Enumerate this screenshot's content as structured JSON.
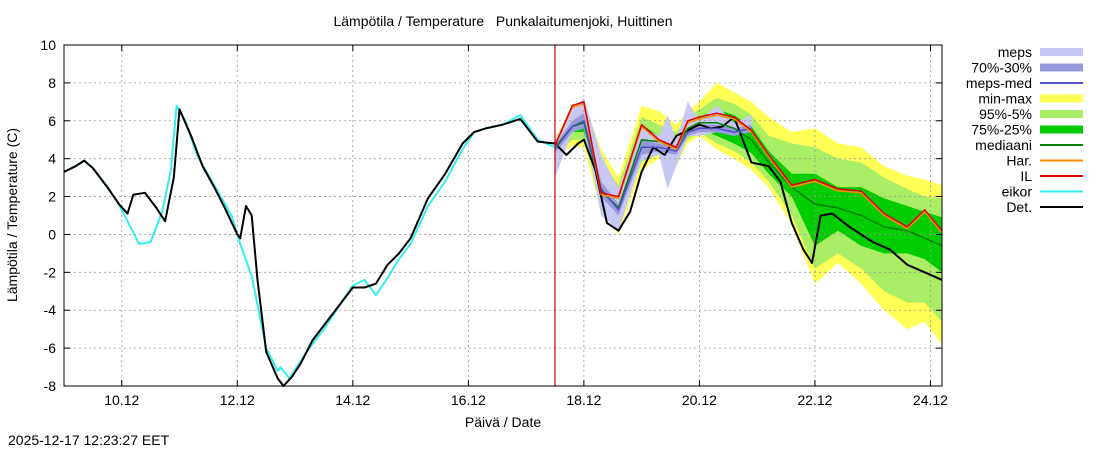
{
  "chart_data": {
    "type": "line",
    "title": "Lämpötila / Temperature   Punkalaitumenjoki, Huittinen",
    "xlabel": "Päivä / Date",
    "ylabel": "Lämpötila / Temperature (C)",
    "timestamp": "2025-12-17 12:23:27 EET",
    "xlim": [
      9.0,
      24.2
    ],
    "ylim": [
      -8,
      10
    ],
    "grid": true,
    "legend_position": "outside-right",
    "x_ticks": [
      {
        "x": 10,
        "label": "10.12"
      },
      {
        "x": 12,
        "label": "12.12"
      },
      {
        "x": 14,
        "label": "14.12"
      },
      {
        "x": 16,
        "label": "16.12"
      },
      {
        "x": 18,
        "label": "18.12"
      },
      {
        "x": 20,
        "label": "20.12"
      },
      {
        "x": 22,
        "label": "22.12"
      },
      {
        "x": 24,
        "label": "24.12"
      }
    ],
    "y_ticks": [
      {
        "y": 10,
        "label": "10"
      },
      {
        "y": 8,
        "label": "8"
      },
      {
        "y": 6,
        "label": "6"
      },
      {
        "y": 4,
        "label": "4"
      },
      {
        "y": 2,
        "label": "2"
      },
      {
        "y": 0,
        "label": "0"
      },
      {
        "y": -2,
        "label": "-2"
      },
      {
        "y": -4,
        "label": "-4"
      },
      {
        "y": -6,
        "label": "-6"
      },
      {
        "y": -8,
        "label": "-8"
      }
    ],
    "forecast_start_x": 17.5,
    "forecast_line_color": "#cc0000",
    "legend": [
      {
        "label": "meps",
        "kind": "band",
        "color": "#c8c8f5"
      },
      {
        "label": "70%-30%",
        "kind": "band",
        "color": "#9898dd"
      },
      {
        "label": "meps-med",
        "kind": "line",
        "color": "#5050c0"
      },
      {
        "label": "min-max",
        "kind": "band",
        "color": "#ffff55"
      },
      {
        "label": "95%-5%",
        "kind": "band",
        "color": "#aaee66"
      },
      {
        "label": "75%-25%",
        "kind": "band",
        "color": "#00cc00"
      },
      {
        "label": "mediaani",
        "kind": "line",
        "color": "#008000"
      },
      {
        "label": "Har.",
        "kind": "line",
        "color": "#ff8c00"
      },
      {
        "label": "IL",
        "kind": "line",
        "color": "#dd0000"
      },
      {
        "label": "eikor",
        "kind": "line",
        "color": "#33eeee"
      },
      {
        "label": "Det.",
        "kind": "line",
        "color": "#000000"
      }
    ],
    "bands": [
      {
        "name": "min-max",
        "color": "#ffff55",
        "x": [
          17.5,
          17.8,
          18.0,
          18.3,
          18.6,
          19.0,
          19.3,
          19.6,
          19.8,
          20.0,
          20.3,
          20.6,
          20.9,
          21.2,
          21.6,
          22.0,
          22.4,
          22.8,
          23.2,
          23.6,
          23.9,
          24.2
        ],
        "upper": [
          5.1,
          6.7,
          7.0,
          4.5,
          3.0,
          6.8,
          6.5,
          5.8,
          6.5,
          7.0,
          8.0,
          7.5,
          7.0,
          6.2,
          5.4,
          5.6,
          4.8,
          4.6,
          3.6,
          3.1,
          2.9,
          2.6
        ],
        "lower": [
          4.0,
          4.7,
          4.6,
          1.2,
          0.0,
          3.4,
          4.0,
          3.6,
          4.8,
          5.2,
          4.5,
          4.0,
          3.4,
          2.5,
          0.5,
          -2.6,
          -1.5,
          -2.6,
          -4.0,
          -5.0,
          -4.6,
          -5.8
        ]
      },
      {
        "name": "95%-5%",
        "color": "#aaee66",
        "x": [
          17.5,
          17.8,
          18.0,
          18.3,
          18.6,
          19.0,
          19.3,
          19.6,
          19.8,
          20.0,
          20.3,
          20.6,
          20.9,
          21.2,
          21.6,
          22.0,
          22.4,
          22.8,
          23.2,
          23.6,
          23.9,
          24.2
        ],
        "upper": [
          5.0,
          6.2,
          6.5,
          3.9,
          2.6,
          6.2,
          5.8,
          5.4,
          6.2,
          6.6,
          7.2,
          6.9,
          6.3,
          5.2,
          4.8,
          4.6,
          4.0,
          3.8,
          3.0,
          2.4,
          2.0,
          1.9
        ],
        "lower": [
          4.2,
          5.0,
          5.0,
          1.6,
          0.6,
          3.8,
          4.4,
          4.0,
          5.0,
          5.4,
          4.8,
          4.4,
          3.8,
          2.8,
          1.0,
          -1.8,
          -1.0,
          -1.8,
          -3.0,
          -3.6,
          -3.6,
          -4.6
        ]
      },
      {
        "name": "75%-25%",
        "color": "#00cc00",
        "x": [
          17.5,
          17.8,
          18.0,
          18.3,
          18.6,
          19.0,
          19.3,
          19.6,
          19.8,
          20.0,
          20.3,
          20.6,
          20.9,
          21.2,
          21.6,
          22.0,
          22.4,
          22.8,
          23.2,
          23.6,
          23.9,
          24.2
        ],
        "upper": [
          4.8,
          6.0,
          6.2,
          2.6,
          2.0,
          5.8,
          5.2,
          5.0,
          5.9,
          6.2,
          6.6,
          6.3,
          5.7,
          4.4,
          3.2,
          3.2,
          2.5,
          2.5,
          1.9,
          1.5,
          1.2,
          0.9
        ],
        "lower": [
          4.4,
          5.4,
          5.4,
          2.0,
          1.0,
          4.4,
          4.6,
          4.4,
          5.3,
          5.6,
          5.2,
          4.8,
          4.3,
          3.2,
          2.0,
          -0.6,
          0.2,
          -0.6,
          -1.0,
          -1.0,
          -1.3,
          -2.0
        ]
      },
      {
        "name": "meps",
        "color": "#c8c8f5",
        "x": [
          17.5,
          17.8,
          18.0,
          18.3,
          18.6,
          19.0,
          19.3,
          19.45,
          19.6,
          19.8,
          20.0,
          20.3,
          20.6,
          20.9
        ],
        "upper": [
          5.0,
          6.6,
          7.2,
          4.2,
          2.4,
          5.7,
          5.2,
          6.3,
          5.0,
          7.0,
          6.0,
          6.8,
          5.9,
          6.3
        ],
        "lower": [
          3.0,
          5.4,
          5.6,
          1.0,
          0.2,
          3.9,
          4.2,
          2.4,
          3.6,
          5.2,
          5.2,
          5.4,
          5.2,
          5.6
        ]
      },
      {
        "name": "70%-30%",
        "color": "#9898dd",
        "x": [
          17.5,
          17.8,
          18.0,
          18.3,
          18.6,
          19.0,
          19.3,
          19.6,
          19.8,
          20.0,
          20.3,
          20.6,
          20.9
        ],
        "upper": [
          4.7,
          6.0,
          6.4,
          2.8,
          1.6,
          5.0,
          4.8,
          4.6,
          5.6,
          5.8,
          5.8,
          5.6,
          5.8
        ],
        "lower": [
          4.3,
          5.4,
          5.6,
          2.0,
          1.0,
          4.2,
          4.4,
          4.2,
          5.2,
          5.4,
          5.4,
          5.2,
          5.4
        ]
      }
    ],
    "series": [
      {
        "name": "eikor",
        "color": "#33eeee",
        "width": 2,
        "x": [
          9.0,
          9.2,
          9.35,
          9.5,
          9.75,
          9.95,
          10.1,
          10.3,
          10.5,
          10.7,
          10.85,
          10.95,
          11.1,
          11.3,
          11.6,
          11.9,
          12.05,
          12.25,
          12.5,
          12.7,
          12.75,
          12.9,
          13.2,
          13.5,
          13.8,
          14.0,
          14.2,
          14.4,
          14.6,
          14.8,
          15.0,
          15.3,
          15.6,
          15.9,
          16.1,
          16.3,
          16.6,
          16.9,
          17.2,
          17.5
        ],
        "y": [
          3.3,
          3.6,
          3.9,
          3.5,
          2.5,
          1.6,
          0.7,
          -0.5,
          -0.4,
          1.2,
          3.4,
          6.8,
          6.0,
          4.2,
          2.6,
          1.0,
          -0.5,
          -2.2,
          -6.0,
          -7.2,
          -7.0,
          -7.6,
          -6.2,
          -5.0,
          -3.6,
          -2.7,
          -2.4,
          -3.2,
          -2.3,
          -1.3,
          -0.5,
          1.5,
          2.8,
          4.5,
          5.4,
          5.6,
          5.8,
          6.3,
          5.0,
          4.6
        ]
      },
      {
        "name": "Det.",
        "color": "#000000",
        "width": 2,
        "x": [
          9.0,
          9.2,
          9.35,
          9.5,
          9.75,
          9.95,
          10.1,
          10.2,
          10.4,
          10.6,
          10.75,
          10.9,
          11.0,
          11.2,
          11.4,
          11.6,
          11.8,
          12.0,
          12.05,
          12.15,
          12.25,
          12.35,
          12.5,
          12.7,
          12.8,
          12.95,
          13.1,
          13.3,
          13.5,
          13.8,
          14.0,
          14.2,
          14.4,
          14.6,
          14.8,
          15.0,
          15.3,
          15.6,
          15.9,
          16.1,
          16.3,
          16.6,
          16.9,
          17.2,
          17.5,
          17.7,
          17.9,
          18.0,
          18.2,
          18.4,
          18.6,
          18.8,
          19.0,
          19.2,
          19.4,
          19.6,
          19.8,
          20.0,
          20.2,
          20.4,
          20.6,
          20.9,
          21.2,
          21.4,
          21.6,
          21.8,
          21.95,
          22.1,
          22.3,
          22.6,
          23.0,
          23.3,
          23.6,
          23.9,
          24.2
        ],
        "y": [
          3.3,
          3.6,
          3.9,
          3.5,
          2.5,
          1.6,
          1.1,
          2.1,
          2.2,
          1.4,
          0.7,
          3.0,
          6.6,
          5.2,
          3.6,
          2.5,
          1.3,
          0.0,
          -0.2,
          1.5,
          1.0,
          -2.4,
          -6.2,
          -7.6,
          -8.0,
          -7.5,
          -6.8,
          -5.6,
          -4.8,
          -3.6,
          -2.8,
          -2.8,
          -2.6,
          -1.6,
          -1.0,
          -0.2,
          1.9,
          3.2,
          4.8,
          5.4,
          5.6,
          5.8,
          6.1,
          4.9,
          4.8,
          4.2,
          4.8,
          5.0,
          3.4,
          0.6,
          0.2,
          1.2,
          3.3,
          4.6,
          4.2,
          5.2,
          5.5,
          5.8,
          5.6,
          5.7,
          6.2,
          3.8,
          3.6,
          2.8,
          0.6,
          -0.8,
          -1.5,
          1.0,
          1.1,
          0.4,
          -0.4,
          -0.8,
          -1.6,
          -2.0,
          -2.4
        ]
      },
      {
        "name": "mediaani",
        "color": "#008000",
        "width": 1.5,
        "x": [
          17.5,
          17.8,
          18.0,
          18.3,
          18.6,
          19.0,
          19.3,
          19.6,
          19.8,
          20.0,
          20.3,
          20.6,
          20.9,
          21.2,
          21.6,
          22.0,
          22.4,
          22.8,
          23.2,
          23.6,
          23.9,
          24.2
        ],
        "y": [
          4.6,
          5.7,
          5.9,
          2.3,
          1.4,
          5.0,
          4.9,
          4.6,
          5.6,
          5.9,
          5.9,
          5.6,
          5.0,
          3.8,
          2.5,
          1.6,
          1.4,
          1.0,
          0.4,
          0.2,
          -0.2,
          -0.6
        ]
      },
      {
        "name": "meps-med",
        "color": "#5050c0",
        "width": 1.5,
        "x": [
          17.5,
          17.8,
          18.0,
          18.3,
          18.6,
          19.0,
          19.3,
          19.6,
          19.8,
          20.0,
          20.3,
          20.6,
          20.9
        ],
        "y": [
          4.5,
          5.7,
          6.0,
          2.4,
          1.3,
          4.6,
          4.6,
          4.4,
          5.4,
          5.6,
          5.6,
          5.4,
          5.6
        ]
      },
      {
        "name": "Har.",
        "color": "#ff8c00",
        "width": 1.5,
        "x": [
          17.5,
          17.8,
          18.0,
          18.3,
          18.6,
          19.0,
          19.3,
          19.6,
          19.8,
          20.0,
          20.3,
          20.6,
          20.9,
          21.2,
          21.6,
          22.0,
          22.4,
          22.8,
          23.2,
          23.6,
          23.9,
          24.2
        ],
        "y": [
          4.7,
          6.7,
          6.9,
          2.1,
          1.9,
          5.7,
          4.9,
          4.5,
          5.9,
          6.1,
          6.3,
          6.1,
          5.4,
          4.1,
          2.5,
          2.8,
          2.3,
          2.2,
          1.0,
          0.3,
          1.2,
          0.1
        ]
      },
      {
        "name": "IL",
        "color": "#dd0000",
        "width": 1.5,
        "x": [
          17.5,
          17.8,
          18.0,
          18.3,
          18.6,
          19.0,
          19.3,
          19.6,
          19.8,
          20.0,
          20.3,
          20.6,
          20.9,
          21.2,
          21.6,
          22.0,
          22.4,
          22.8,
          23.2,
          23.6,
          23.9,
          24.2
        ],
        "y": [
          4.7,
          6.8,
          7.0,
          2.2,
          2.0,
          5.8,
          5.0,
          4.6,
          6.0,
          6.2,
          6.4,
          6.2,
          5.5,
          4.2,
          2.6,
          2.9,
          2.4,
          2.3,
          1.1,
          0.4,
          1.3,
          0.2
        ]
      }
    ]
  }
}
